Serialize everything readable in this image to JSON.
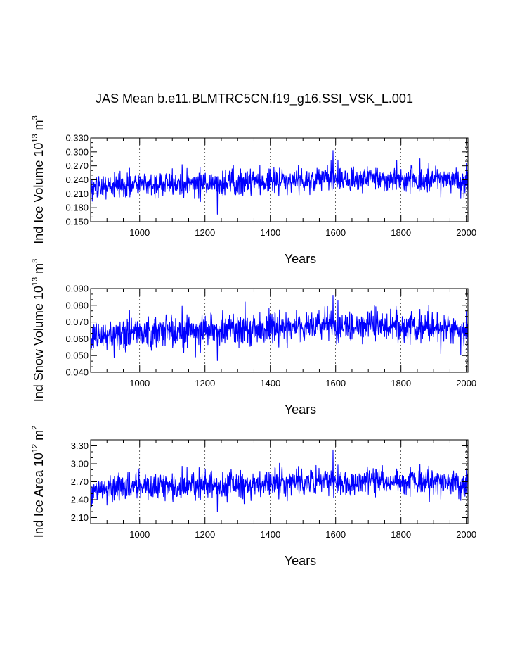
{
  "title": "JAS Mean b.e11.BLMTRC5CN.f19_g16.SSI_VSK_L.001",
  "chart_data": [
    {
      "type": "line",
      "xlabel": "Years",
      "ylabel": "Ind Ice Volume 10",
      "ylabel_exp": "13",
      "ylabel_unit": " m",
      "ylabel_unit_exp": "3",
      "xlim": [
        850,
        2005
      ],
      "ylim": [
        0.15,
        0.33
      ],
      "xticks": [
        1000,
        1200,
        1400,
        1600,
        1800,
        2000
      ],
      "xtick_labels": [
        "1000",
        "1200",
        "1400",
        "1600",
        "1800",
        "2000"
      ],
      "yticks": [
        0.15,
        0.18,
        0.21,
        0.24,
        0.27,
        0.3,
        0.33
      ],
      "ytick_labels": [
        "0.150",
        "0.180",
        "0.210",
        "0.240",
        "0.270",
        "0.300",
        "0.330"
      ],
      "grid": "dashed vertical at major x ticks",
      "series": [
        {
          "color": "#0000ff",
          "x_start": 850,
          "x_end": 2005,
          "baseline": [
            [
              850,
              0.225
            ],
            [
              950,
              0.226
            ],
            [
              1050,
              0.229
            ],
            [
              1150,
              0.233
            ],
            [
              1250,
              0.233
            ],
            [
              1350,
              0.236
            ],
            [
              1450,
              0.24
            ],
            [
              1550,
              0.24
            ],
            [
              1650,
              0.243
            ],
            [
              1750,
              0.243
            ],
            [
              1850,
              0.241
            ],
            [
              1950,
              0.24
            ],
            [
              2005,
              0.238
            ]
          ],
          "noise_sd": 0.016,
          "min": 0.166,
          "max": 0.303,
          "min_x": 1238,
          "max_x": 1592,
          "end_value": 0.2
        }
      ]
    },
    {
      "type": "line",
      "xlabel": "Years",
      "ylabel": "Ind Snow Volume 10",
      "ylabel_exp": "13",
      "ylabel_unit": " m",
      "ylabel_unit_exp": "3",
      "xlim": [
        850,
        2005
      ],
      "ylim": [
        0.04,
        0.09
      ],
      "xticks": [
        1000,
        1200,
        1400,
        1600,
        1800,
        2000
      ],
      "xtick_labels": [
        "1000",
        "1200",
        "1400",
        "1600",
        "1800",
        "2000"
      ],
      "yticks": [
        0.04,
        0.05,
        0.06,
        0.07,
        0.08,
        0.09
      ],
      "ytick_labels": [
        "0.040",
        "0.050",
        "0.060",
        "0.070",
        "0.080",
        "0.090"
      ],
      "grid": "dashed vertical at major x ticks",
      "series": [
        {
          "color": "#0000ff",
          "x_start": 850,
          "x_end": 2005,
          "baseline": [
            [
              850,
              0.061
            ],
            [
              950,
              0.062
            ],
            [
              1050,
              0.064
            ],
            [
              1150,
              0.065
            ],
            [
              1250,
              0.065
            ],
            [
              1350,
              0.066
            ],
            [
              1450,
              0.067
            ],
            [
              1550,
              0.068
            ],
            [
              1650,
              0.068
            ],
            [
              1750,
              0.068
            ],
            [
              1850,
              0.067
            ],
            [
              1950,
              0.066
            ],
            [
              2005,
              0.065
            ]
          ],
          "noise_sd": 0.0055,
          "min": 0.047,
          "max": 0.086,
          "min_x": 1238,
          "max_x": 1592,
          "end_value": 0.052
        }
      ]
    },
    {
      "type": "line",
      "xlabel": "Years",
      "ylabel": "Ind Ice Area 10",
      "ylabel_exp": "12",
      "ylabel_unit": " m",
      "ylabel_unit_exp": "2",
      "xlim": [
        850,
        2005
      ],
      "ylim": [
        2.0,
        3.4
      ],
      "xticks": [
        1000,
        1200,
        1400,
        1600,
        1800,
        2000
      ],
      "xtick_labels": [
        "1000",
        "1200",
        "1400",
        "1600",
        "1800",
        "2000"
      ],
      "yticks": [
        2.1,
        2.4,
        2.7,
        3.0,
        3.3
      ],
      "ytick_labels": [
        "2.10",
        "2.40",
        "2.70",
        "3.00",
        "3.30"
      ],
      "grid": "dashed vertical at major x ticks",
      "series": [
        {
          "color": "#0000ff",
          "x_start": 850,
          "x_end": 2005,
          "baseline": [
            [
              850,
              2.58
            ],
            [
              950,
              2.6
            ],
            [
              1050,
              2.62
            ],
            [
              1150,
              2.64
            ],
            [
              1250,
              2.64
            ],
            [
              1350,
              2.66
            ],
            [
              1450,
              2.7
            ],
            [
              1550,
              2.7
            ],
            [
              1650,
              2.7
            ],
            [
              1750,
              2.72
            ],
            [
              1850,
              2.7
            ],
            [
              1950,
              2.68
            ],
            [
              2005,
              2.66
            ]
          ],
          "noise_sd": 0.13,
          "min": 2.2,
          "max": 3.23,
          "min_x": 1238,
          "max_x": 1592,
          "end_value": 2.45
        }
      ]
    }
  ]
}
